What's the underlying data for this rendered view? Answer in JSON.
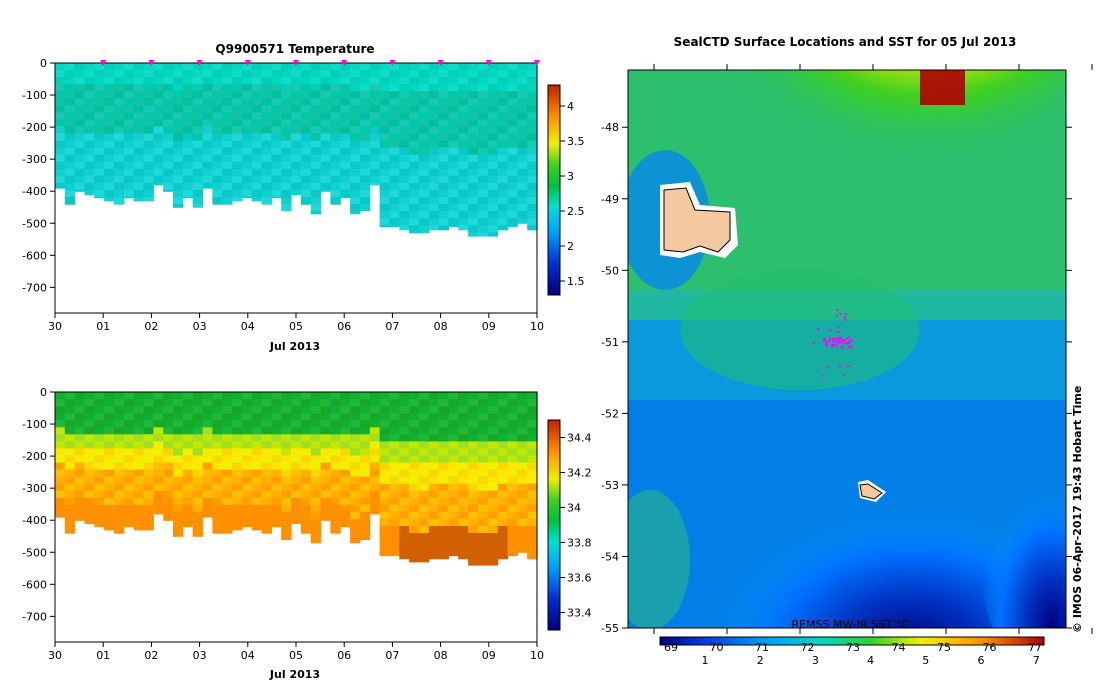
{
  "chart_data": [
    {
      "type": "heatmap",
      "title": "Q9900571  Temperature",
      "xlabel": "Jul 2013",
      "x_ticks": [
        "30",
        "01",
        "02",
        "03",
        "04",
        "05",
        "06",
        "07",
        "08",
        "09",
        "10"
      ],
      "xlim": [
        0,
        10
      ],
      "ylim": [
        -780,
        0
      ],
      "y_ticks": [
        0,
        -100,
        -200,
        -300,
        -400,
        -500,
        -600,
        -700
      ],
      "colorbar": {
        "min": 1.3,
        "max": 4.3,
        "ticks": [
          1.5,
          2,
          2.5,
          3,
          3.5,
          4
        ]
      },
      "profile_markers_x": [
        1,
        2,
        3,
        4,
        5,
        6,
        7,
        8,
        9,
        10
      ],
      "marker_color": "#ff00ff",
      "profile_depths": [
        -390,
        -440,
        -400,
        -410,
        -420,
        -430,
        -440,
        -420,
        -430,
        -430,
        -380,
        -400,
        -450,
        -420,
        -450,
        -390,
        -440,
        -440,
        -430,
        -420,
        -430,
        -440,
        -420,
        -460,
        -410,
        -440,
        -470,
        -400,
        -440,
        -420,
        -470,
        -460,
        -380,
        -510,
        -510,
        -520,
        -530,
        -530,
        -520,
        -520,
        -510,
        -520,
        -540,
        -540,
        -540,
        -520,
        -510,
        -500,
        -520
      ]
    },
    {
      "type": "heatmap",
      "title": "",
      "xlabel": "Jul 2013",
      "x_ticks": [
        "30",
        "01",
        "02",
        "03",
        "04",
        "05",
        "06",
        "07",
        "08",
        "09",
        "10"
      ],
      "xlim": [
        0,
        10
      ],
      "ylim": [
        -780,
        0
      ],
      "y_ticks": [
        0,
        -100,
        -200,
        -300,
        -400,
        -500,
        -600,
        -700
      ],
      "colorbar": {
        "min": 33.3,
        "max": 34.5,
        "ticks": [
          33.4,
          33.6,
          33.8,
          34,
          34.2,
          34.4
        ]
      }
    },
    {
      "type": "heatmap",
      "title": "SealCTD Surface Locations and SST for 05 Jul 2013",
      "y_ticks": [
        "-48",
        "-49",
        "-50",
        "-51",
        "-52",
        "-53",
        "-54",
        "-55"
      ],
      "ylim": [
        -55,
        -47.2
      ],
      "product_label": "REMSS MW-IR SST °C",
      "colorbar_ticks": [
        "1",
        "2",
        "3",
        "4",
        "5",
        "6",
        "7"
      ],
      "colorbar_marks": [
        "69",
        "70",
        "71",
        "72",
        "73",
        "74",
        "75",
        "76",
        "77"
      ],
      "seal_locations": {
        "lat": -51.0,
        "color": "#ff00ff"
      },
      "credit": "© IMOS 06-Apr-2017 19:43 Hobart Time"
    }
  ]
}
